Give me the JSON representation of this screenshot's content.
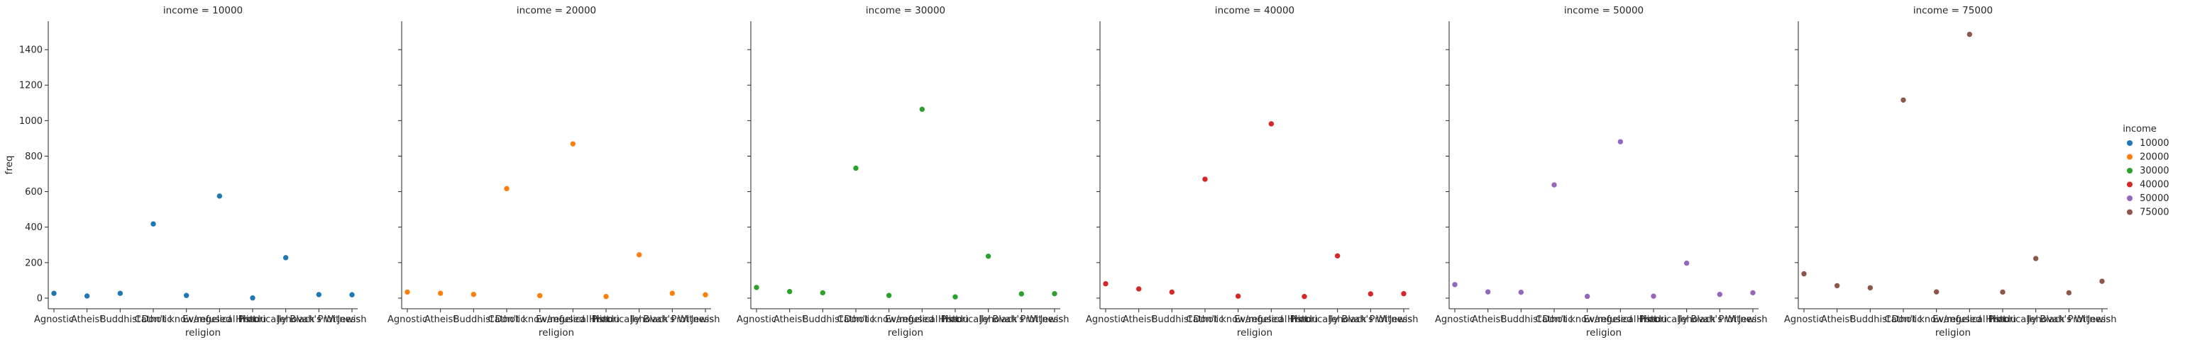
{
  "chart_data": {
    "type": "scatter",
    "facet_variable": "income",
    "xlabel": "religion",
    "ylabel": "freq",
    "ylim": [
      -60,
      1560
    ],
    "yticks": [
      0,
      200,
      400,
      600,
      800,
      1000,
      1200,
      1400
    ],
    "categories": [
      "Agnostic",
      "Atheist",
      "Buddhist",
      "Catholic",
      "Don't know/refused",
      "Evangelical Prot",
      "Hindu",
      "Historically Black Prot",
      "Jehovah's Witness",
      "Jewish"
    ],
    "legend": {
      "title": "income",
      "placement": "right",
      "entries": [
        " 10000",
        " 20000",
        " 30000",
        " 40000",
        " 50000",
        " 75000"
      ]
    },
    "panels": [
      {
        "title": "income =  10000",
        "income": " 10000",
        "color": "#1f77b4",
        "values": [
          27,
          12,
          27,
          418,
          15,
          575,
          1,
          228,
          20,
          19
        ]
      },
      {
        "title": "income =  20000",
        "income": " 20000",
        "color": "#ff7f0e",
        "values": [
          34,
          27,
          21,
          617,
          14,
          869,
          9,
          244,
          27,
          19
        ]
      },
      {
        "title": "income =  30000",
        "income": " 30000",
        "color": "#2ca02c",
        "values": [
          60,
          37,
          30,
          732,
          15,
          1064,
          7,
          236,
          24,
          25
        ]
      },
      {
        "title": "income =  40000",
        "income": " 40000",
        "color": "#d62728",
        "values": [
          81,
          52,
          34,
          670,
          11,
          982,
          9,
          238,
          24,
          25
        ]
      },
      {
        "title": "income =  50000",
        "income": " 50000",
        "color": "#9467bd",
        "values": [
          76,
          35,
          33,
          638,
          10,
          881,
          11,
          197,
          21,
          30
        ]
      },
      {
        "title": "income =  75000",
        "income": " 75000",
        "color": "#8c564b",
        "values": [
          137,
          70,
          58,
          1116,
          35,
          1486,
          34,
          223,
          30,
          95
        ]
      }
    ]
  }
}
